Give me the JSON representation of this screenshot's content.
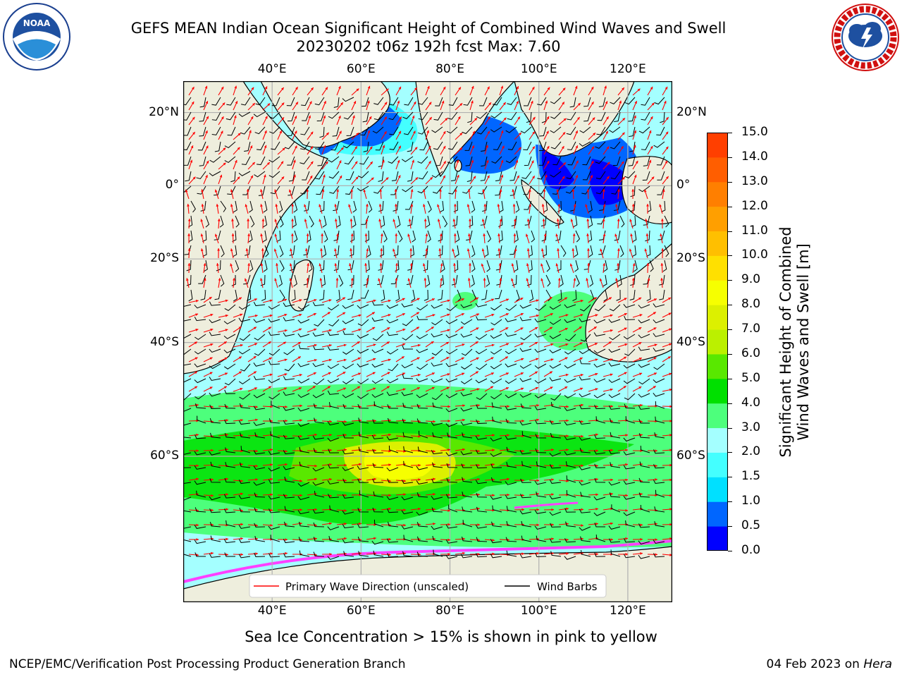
{
  "title": {
    "line1": "GEFS MEAN Indian Ocean Significant Height of Combined Wind Waves and Swell",
    "line2": "20230202 t06z 192h fcst   Max: 7.60"
  },
  "map": {
    "lon_ticks": [
      "40°E",
      "60°E",
      "80°E",
      "100°E",
      "120°E"
    ],
    "lat_ticks_left": [
      "20°N",
      "0°",
      "20°S",
      "40°S",
      "60°S"
    ],
    "lat_ticks_right": [
      "20°N",
      "0°",
      "20°S",
      "40°S",
      "60°S"
    ],
    "lon_values": [
      40,
      60,
      80,
      100,
      120
    ],
    "lat_values": [
      20,
      0,
      -20,
      -40,
      -60
    ],
    "extent": {
      "lon_min": 20,
      "lon_max": 130,
      "lat_min": -75,
      "lat_max": 28
    },
    "legend": {
      "wave_label": "Primary Wave Direction (unscaled)",
      "wind_label": "Wind Barbs"
    }
  },
  "colorbar": {
    "label_line1": "Significant Height of Combined",
    "label_line2": "Wind Waves and Swell [m]",
    "ticks": [
      "15.0",
      "14.0",
      "13.0",
      "12.0",
      "11.0",
      "10.0",
      "9.0",
      "8.0",
      "7.0",
      "6.0",
      "5.0",
      "4.0",
      "3.0",
      "2.0",
      "1.5",
      "1.0",
      "0.5",
      "0.0"
    ],
    "colors_bottom_to_top": [
      "#0000ff",
      "#0066ff",
      "#00e0ff",
      "#44ffff",
      "#a4ffff",
      "#4dff7c",
      "#00e000",
      "#59e800",
      "#bbf000",
      "#dcf000",
      "#f6ff00",
      "#ffe000",
      "#ffbf00",
      "#ff9f00",
      "#ff7f00",
      "#ff5e00",
      "#ff3f00"
    ]
  },
  "colors": {
    "land": "#eeeedd",
    "grid": "#b0b0b0",
    "wave_arrow": "#ff0000",
    "wind_barb": "#000000",
    "sea_ice": "#ff40ff"
  },
  "caption": "Sea Ice Concentration > 15% is shown in pink to yellow",
  "footer": {
    "left": "NCEP/EMC/Verification Post Processing Product Generation Branch",
    "date": "04 Feb 2023 on ",
    "machine": "Hera"
  },
  "logos": {
    "noaa_text": "NOAA",
    "nws_text": "NATIONAL WEATHER SERVICE"
  }
}
